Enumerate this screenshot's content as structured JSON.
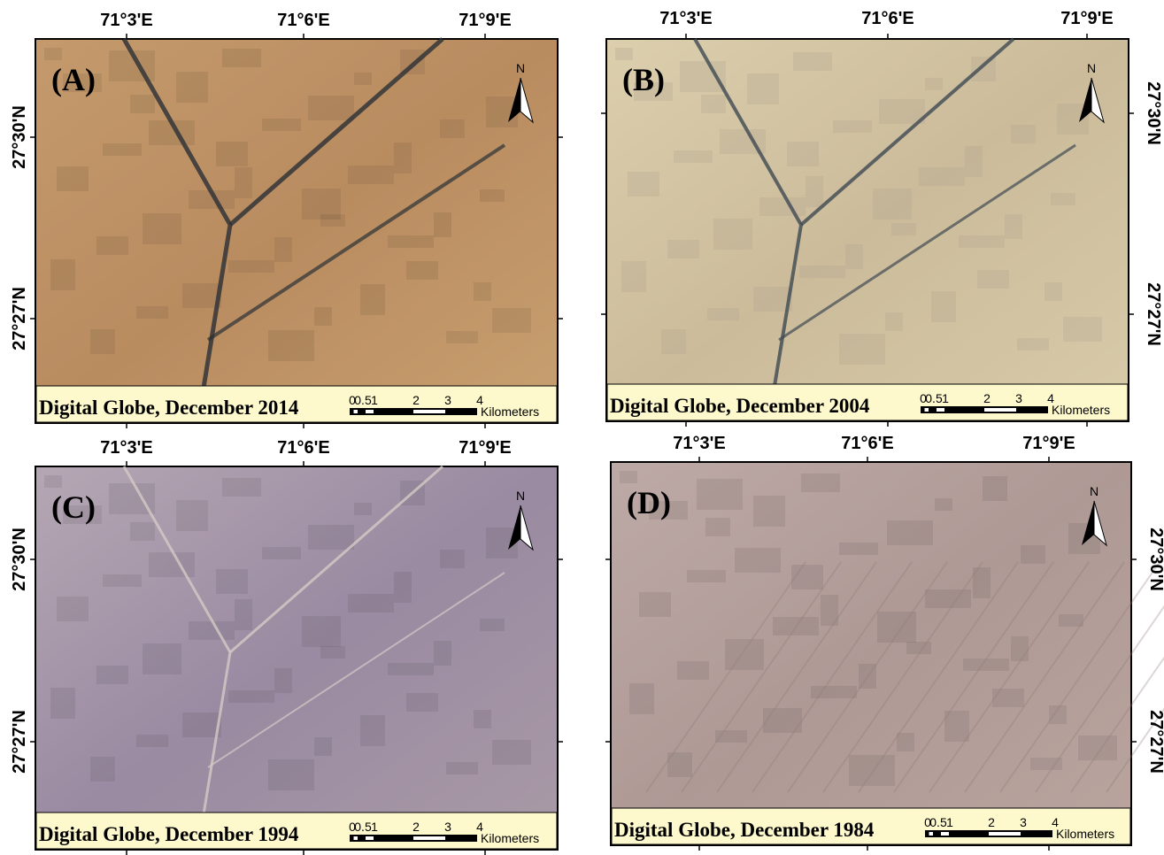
{
  "panels": [
    {
      "label": "(A)",
      "caption": "Digital Globe, December 2014",
      "x_ticks": [
        "71°3'E",
        "71°6'E",
        "71°9'E"
      ],
      "y_ticks": [
        "27°30'N",
        "27°27'N"
      ],
      "north": "N",
      "scale": {
        "labels": [
          "0",
          "0.5",
          "1",
          "2",
          "3",
          "4"
        ],
        "unit": "Kilometers"
      }
    },
    {
      "label": "(B)",
      "caption": "Digital Globe, December 2004",
      "x_ticks": [
        "71°3'E",
        "71°6'E",
        "71°9'E"
      ],
      "y_ticks": [
        "27°30'N",
        "27°27'N"
      ],
      "north": "N",
      "scale": {
        "labels": [
          "0",
          "0.5",
          "1",
          "2",
          "3",
          "4"
        ],
        "unit": "Kilometers"
      }
    },
    {
      "label": "(C)",
      "caption": "Digital Globe, December 1994",
      "x_ticks": [
        "71°3'E",
        "71°6'E",
        "71°9'E"
      ],
      "y_ticks": [
        "27°30'N",
        "27°27'N"
      ],
      "north": "N",
      "scale": {
        "labels": [
          "0",
          "0.5",
          "1",
          "2",
          "3",
          "4"
        ],
        "unit": "Kilometers"
      }
    },
    {
      "label": "(D)",
      "caption": "Digital Globe, December 1984",
      "x_ticks": [
        "71°3'E",
        "71°6'E",
        "71°9'E"
      ],
      "y_ticks": [
        "27°30'N",
        "27°27'N"
      ],
      "north": "N",
      "scale": {
        "labels": [
          "0",
          "0.5",
          "1",
          "2",
          "3",
          "4"
        ],
        "unit": "Kilometers"
      }
    }
  ]
}
